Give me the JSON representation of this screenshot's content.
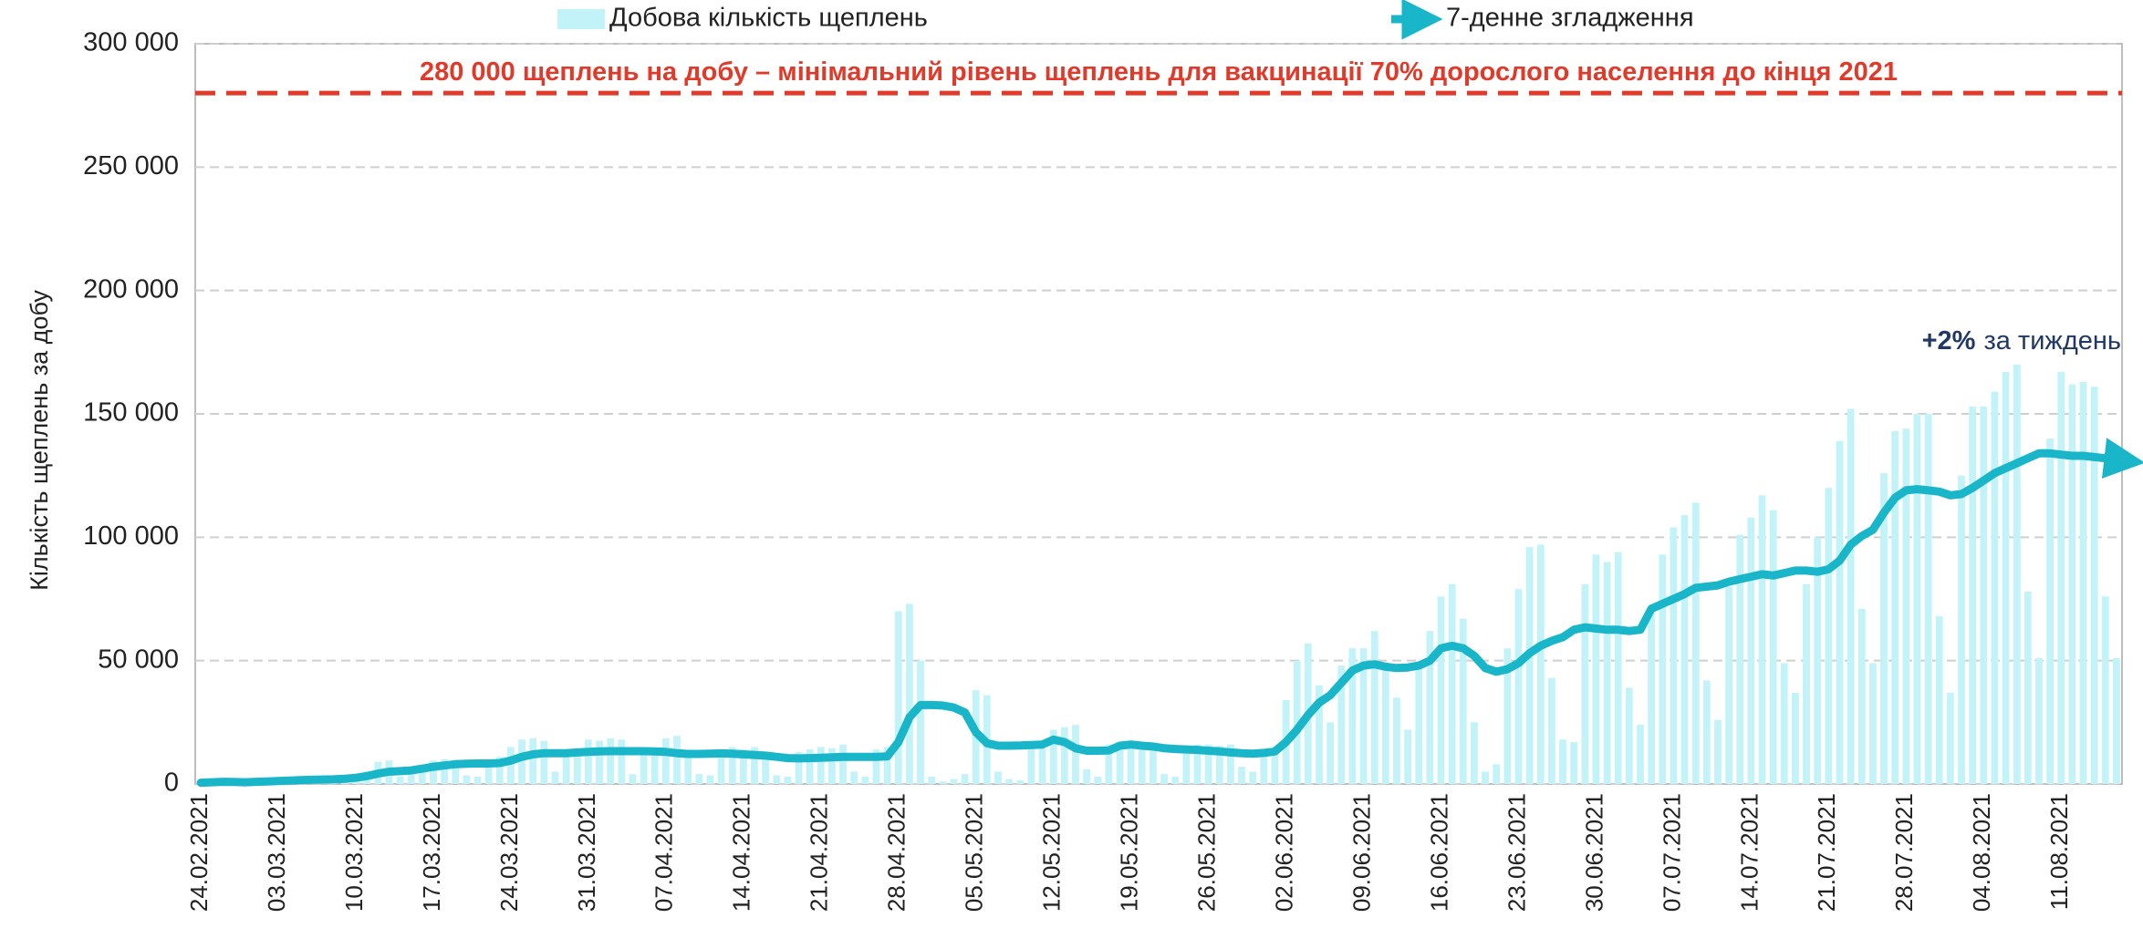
{
  "chart_data": {
    "type": "bar",
    "y_label": "Кількість щеплень за добу",
    "categories": [
      "24.02.2021",
      null,
      null,
      null,
      null,
      null,
      null,
      "03.03.2021",
      null,
      null,
      null,
      null,
      null,
      null,
      "10.03.2021",
      null,
      null,
      null,
      null,
      null,
      null,
      "17.03.2021",
      null,
      null,
      null,
      null,
      null,
      null,
      "24.03.2021",
      null,
      null,
      null,
      null,
      null,
      null,
      "31.03.2021",
      null,
      null,
      null,
      null,
      null,
      null,
      "07.04.2021",
      null,
      null,
      null,
      null,
      null,
      null,
      "14.04.2021",
      null,
      null,
      null,
      null,
      null,
      null,
      "21.04.2021",
      null,
      null,
      null,
      null,
      null,
      null,
      "28.04.2021",
      null,
      null,
      null,
      null,
      null,
      null,
      "05.05.2021",
      null,
      null,
      null,
      null,
      null,
      null,
      "12.05.2021",
      null,
      null,
      null,
      null,
      null,
      null,
      "19.05.2021",
      null,
      null,
      null,
      null,
      null,
      null,
      "26.05.2021",
      null,
      null,
      null,
      null,
      null,
      null,
      "02.06.2021",
      null,
      null,
      null,
      null,
      null,
      null,
      "09.06.2021",
      null,
      null,
      null,
      null,
      null,
      null,
      "16.06.2021",
      null,
      null,
      null,
      null,
      null,
      null,
      "23.06.2021",
      null,
      null,
      null,
      null,
      null,
      null,
      "30.06.2021",
      null,
      null,
      null,
      null,
      null,
      null,
      "07.07.2021",
      null,
      null,
      null,
      null,
      null,
      null,
      "14.07.2021",
      null,
      null,
      null,
      null,
      null,
      null,
      "21.07.2021",
      null,
      null,
      null,
      null,
      null,
      null,
      "28.07.2021",
      null,
      null,
      null,
      null,
      null,
      null,
      "04.08.2021",
      null,
      null,
      null,
      null,
      null,
      null,
      "11.08.2021",
      null,
      null,
      null,
      null,
      null
    ],
    "series": [
      {
        "name": "Добова кількість щеплень",
        "type": "bar",
        "color": "#c2f3f8",
        "values": [
          300,
          900,
          1200,
          400,
          200,
          1500,
          1800,
          2200,
          2500,
          2600,
          900,
          600,
          2800,
          3200,
          3500,
          5000,
          9000,
          9500,
          3000,
          5500,
          6000,
          9500,
          10000,
          9800,
          3500,
          3000,
          9000,
          11000,
          15000,
          18000,
          18500,
          17500,
          5000,
          12000,
          14000,
          18000,
          17500,
          18500,
          18000,
          4000,
          13000,
          14000,
          18500,
          19500,
          13000,
          4000,
          3500,
          14000,
          15000,
          14000,
          15000,
          12000,
          3500,
          3000,
          13000,
          14000,
          15000,
          14500,
          16000,
          5000,
          3000,
          14000,
          15000,
          70000,
          73000,
          50000,
          3000,
          1000,
          2000,
          4000,
          38000,
          36000,
          5000,
          2000,
          1500,
          16000,
          17000,
          22000,
          23000,
          24000,
          6000,
          3000,
          16000,
          17000,
          17000,
          16000,
          15000,
          4000,
          3000,
          15000,
          16000,
          16000,
          15500,
          16000,
          7000,
          5000,
          14000,
          15000,
          34000,
          50000,
          57000,
          40000,
          25000,
          48000,
          55000,
          55000,
          62000,
          49000,
          35000,
          22000,
          48000,
          62000,
          76000,
          81000,
          67000,
          25000,
          5000,
          8000,
          55000,
          79000,
          96000,
          97000,
          43000,
          18000,
          17000,
          81000,
          93000,
          90000,
          94000,
          39000,
          24000,
          70000,
          93000,
          104000,
          109000,
          114000,
          42000,
          26000,
          80000,
          101000,
          108000,
          117000,
          111000,
          49000,
          37000,
          81000,
          100000,
          120000,
          139000,
          152000,
          71000,
          49000,
          126000,
          143000,
          144000,
          150000,
          150000,
          68000,
          37000,
          125000,
          153000,
          153000,
          159000,
          167000,
          170000,
          78000,
          51000,
          140000,
          167000,
          162000,
          163000,
          161000,
          76000,
          51000
        ]
      },
      {
        "name": "7-денне згладження",
        "type": "line",
        "color": "#19b5c8",
        "values": [
          500,
          700,
          900,
          800,
          700,
          900,
          1000,
          1200,
          1400,
          1600,
          1700,
          1800,
          1900,
          2100,
          2500,
          3200,
          4200,
          5000,
          5200,
          5500,
          6200,
          7000,
          7500,
          8000,
          8200,
          8300,
          8300,
          8500,
          9500,
          11000,
          12000,
          12500,
          12500,
          12500,
          12800,
          13000,
          13200,
          13300,
          13300,
          13300,
          13300,
          13200,
          13000,
          12500,
          12200,
          12200,
          12300,
          12400,
          12300,
          12000,
          11800,
          11500,
          11000,
          10500,
          10400,
          10500,
          10600,
          10800,
          11000,
          11000,
          11000,
          11000,
          11200,
          17000,
          27000,
          32000,
          32000,
          31800,
          31000,
          29000,
          21000,
          16500,
          15500,
          15500,
          15600,
          15800,
          16000,
          18000,
          17000,
          14500,
          13500,
          13500,
          13600,
          15500,
          16000,
          15500,
          15200,
          14500,
          14200,
          14000,
          13800,
          13500,
          13200,
          12800,
          12500,
          12300,
          12600,
          13200,
          17000,
          22000,
          28000,
          33000,
          36000,
          41000,
          46000,
          48000,
          48500,
          47500,
          47000,
          47200,
          48000,
          50000,
          55000,
          56000,
          55000,
          52000,
          47000,
          45500,
          46500,
          49000,
          53000,
          56000,
          58000,
          59500,
          62500,
          63500,
          63000,
          62500,
          62500,
          62000,
          62500,
          71000,
          73000,
          75000,
          77000,
          79500,
          80000,
          80500,
          82000,
          83000,
          84000,
          85000,
          84500,
          85500,
          86500,
          86500,
          86000,
          87000,
          90500,
          97000,
          100500,
          103000,
          110000,
          116000,
          119000,
          119500,
          119000,
          118500,
          117000,
          117500,
          120000,
          123000,
          126000,
          128000,
          130000,
          132000,
          134000,
          134000,
          133500,
          133000,
          133000,
          132500,
          132000,
          131500
        ]
      }
    ],
    "ylim": [
      0,
      300000
    ],
    "yticks": [
      0,
      {
        "value": 50000,
        "label": "50 000"
      },
      {
        "value": 100000,
        "label": "100 000"
      },
      {
        "value": 150000,
        "label": "150 000"
      },
      {
        "value": 200000,
        "label": "200 000"
      },
      {
        "value": 250000,
        "label": "250 000"
      },
      {
        "value": 300000,
        "label": "300 000"
      }
    ],
    "grid": true,
    "legend": "top",
    "reference_line": {
      "value": 280000,
      "label": "280 000 щеплень на добу – мінімальний рівень щеплень для вакцинації 70% дорослого населення до кінця 2021",
      "color": "#e03a2b"
    },
    "annotation": {
      "bold": "+2%",
      "text": "за тиждень",
      "color": "#1f3864"
    }
  }
}
